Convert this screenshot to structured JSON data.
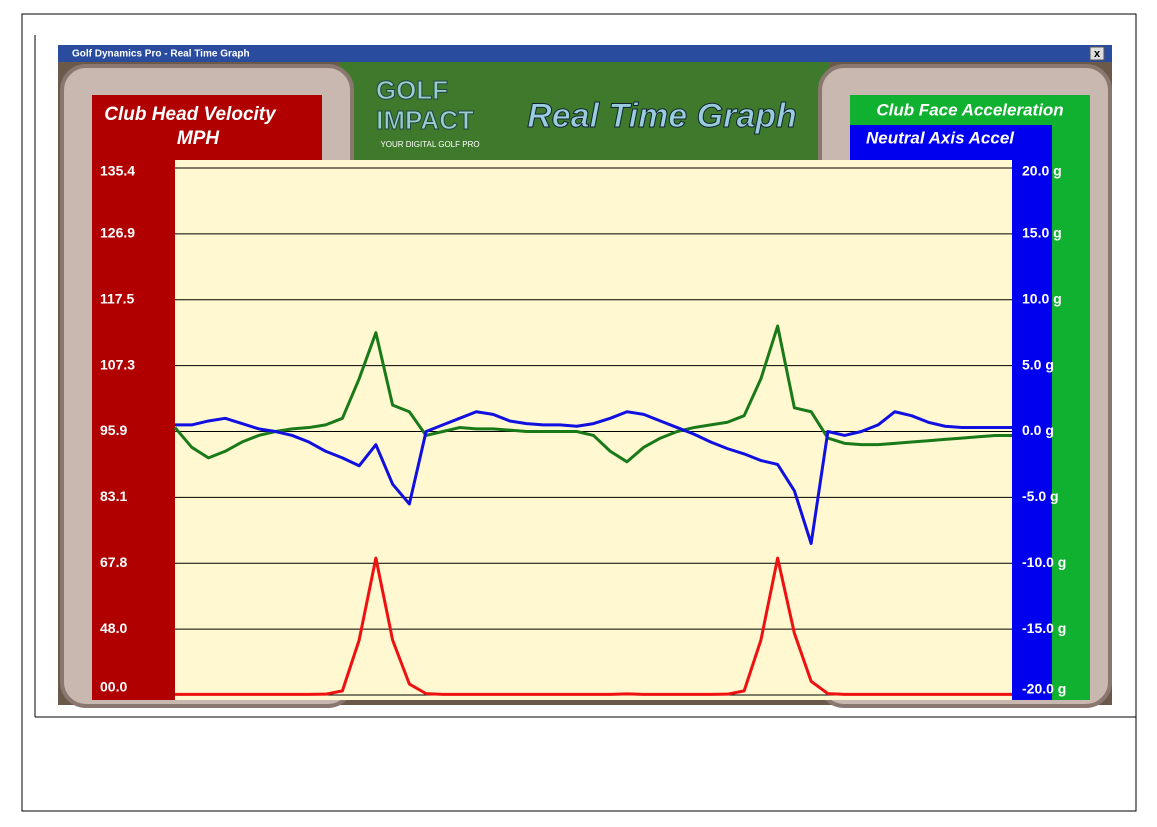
{
  "window": {
    "title": "Golf Dynamics Pro - Real Time Graph",
    "close": "x"
  },
  "logo": {
    "line1": "GOLF",
    "line2": "IMPACT",
    "tagline": "YOUR DIGITAL GOLF PRO"
  },
  "chart_data": {
    "type": "line",
    "title": "Real Time Graph",
    "left_title": "Club Head Velocity",
    "left_unit": "MPH",
    "x": [
      0,
      2,
      4,
      6,
      8,
      10,
      12,
      14,
      16,
      18,
      20,
      22,
      24,
      26,
      28,
      30,
      32,
      34,
      36,
      38,
      40,
      42,
      44,
      46,
      48,
      50,
      52,
      54,
      56,
      58,
      60,
      62,
      64,
      66,
      68,
      70,
      72,
      74,
      76,
      78,
      80,
      82,
      84,
      86,
      88,
      90,
      92,
      94,
      96,
      98,
      100
    ],
    "xlim": [
      0,
      100
    ],
    "ylim": [
      -20,
      20
    ],
    "yticks": [
      {
        "value": -20,
        "label": "-20.0 g"
      },
      {
        "value": -15,
        "label": "-15.0 g"
      },
      {
        "value": -10,
        "label": "-10.0 g"
      },
      {
        "value": -5,
        "label": "-5.0 g"
      },
      {
        "value": 0,
        "label": "0.0 g"
      },
      {
        "value": 5,
        "label": "5.0 g"
      },
      {
        "value": 10,
        "label": "10.0 g"
      },
      {
        "value": 15,
        "label": "15.0 g"
      },
      {
        "value": 20,
        "label": "20.0 g"
      }
    ],
    "y2lim": [
      0,
      135.4
    ],
    "y2ticks": [
      {
        "value": 0,
        "label": "00.0"
      },
      {
        "value": 48,
        "label": "48.0"
      },
      67.8,
      83.1,
      95.9,
      107.3,
      117.5,
      126.9,
      135.4
    ],
    "grid": true,
    "series": [
      {
        "name": "Club Face Acceleration",
        "color": "#1a7a1a",
        "values": [
          0.3,
          -1.2,
          -2,
          -1.5,
          -0.8,
          -0.3,
          0,
          0.2,
          0.3,
          0.5,
          1,
          4,
          7.5,
          2,
          1.5,
          -0.3,
          0,
          0.3,
          0.2,
          0.2,
          0.1,
          0,
          0,
          0,
          0,
          -0.3,
          -1.5,
          -2.3,
          -1.2,
          -0.5,
          0,
          0.3,
          0.5,
          0.7,
          1.2,
          4,
          8,
          1.8,
          1.5,
          -0.5,
          -0.9,
          -1,
          -1,
          -0.9,
          -0.8,
          -0.7,
          -0.6,
          -0.5,
          -0.4,
          -0.3,
          -0.3
        ]
      },
      {
        "name": "Neutral Axis Accel",
        "color": "#1010e0",
        "values": [
          0.5,
          0.5,
          0.8,
          1,
          0.6,
          0.2,
          0,
          -0.3,
          -0.8,
          -1.5,
          -2,
          -2.6,
          -1,
          -4,
          -5.5,
          0,
          0.5,
          1,
          1.5,
          1.3,
          0.8,
          0.6,
          0.5,
          0.5,
          0.4,
          0.6,
          1,
          1.5,
          1.3,
          0.8,
          0.3,
          -0.2,
          -0.8,
          -1.3,
          -1.7,
          -2.2,
          -2.5,
          -4.5,
          -8.5,
          0,
          -0.3,
          0,
          0.5,
          1.5,
          1.2,
          0.7,
          0.4,
          0.3,
          0.3,
          0.3,
          0.3
        ]
      },
      {
        "name": "Club Head Velocity",
        "color": "#ee1111",
        "axis": "y2",
        "values": [
          0.5,
          0.5,
          0.5,
          0.5,
          0.5,
          0.5,
          0.5,
          0.5,
          0.5,
          0.6,
          3,
          40,
          69,
          40,
          8,
          1,
          0.5,
          0.5,
          0.5,
          0.5,
          0.5,
          0.5,
          0.5,
          0.5,
          0.5,
          0.5,
          0.5,
          0.8,
          0.5,
          0.5,
          0.5,
          0.5,
          0.5,
          0.6,
          3,
          40,
          69,
          45,
          10,
          1,
          0.5,
          0.5,
          0.5,
          0.5,
          0.5,
          0.5,
          0.5,
          0.5,
          0.5,
          0.5,
          0.5
        ]
      }
    ]
  }
}
